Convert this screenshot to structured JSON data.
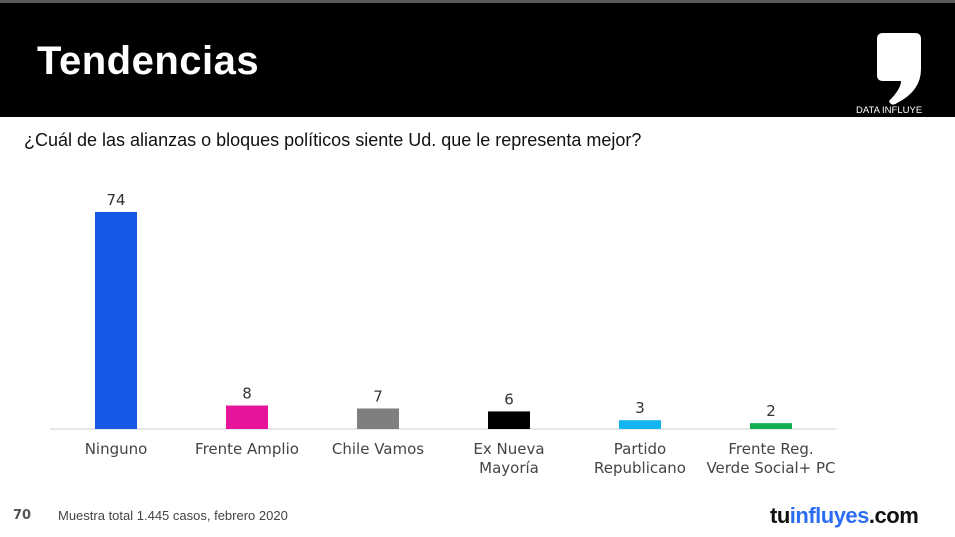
{
  "header": {
    "title": "Tendencias",
    "logo_text": "DATA INFLUYE"
  },
  "question": "¿Cuál de las alianzas o bloques políticos siente Ud. que le representa mejor?",
  "footer": {
    "page_number": "70",
    "note": "Muestra total 1.445 casos, febrero 2020",
    "brand_part1": "tu",
    "brand_part2": "influyes",
    ".com": ".com",
    "brand_part3": ".com"
  },
  "chart_data": {
    "type": "bar",
    "title": "",
    "xlabel": "",
    "ylabel": "",
    "ylim": [
      0,
      74
    ],
    "grid": false,
    "categories": [
      [
        "Ninguno"
      ],
      [
        "Frente Amplio"
      ],
      [
        "Chile Vamos"
      ],
      [
        "Ex Nueva",
        "Mayoría"
      ],
      [
        "Partido",
        "Republicano"
      ],
      [
        "Frente Reg.",
        "Verde Social+ PC"
      ]
    ],
    "values": [
      74,
      8,
      7,
      6,
      3,
      2
    ],
    "colors": [
      "#1558e6",
      "#e6139b",
      "#7f7f7f",
      "#000000",
      "#14b4f0",
      "#10b050"
    ]
  }
}
